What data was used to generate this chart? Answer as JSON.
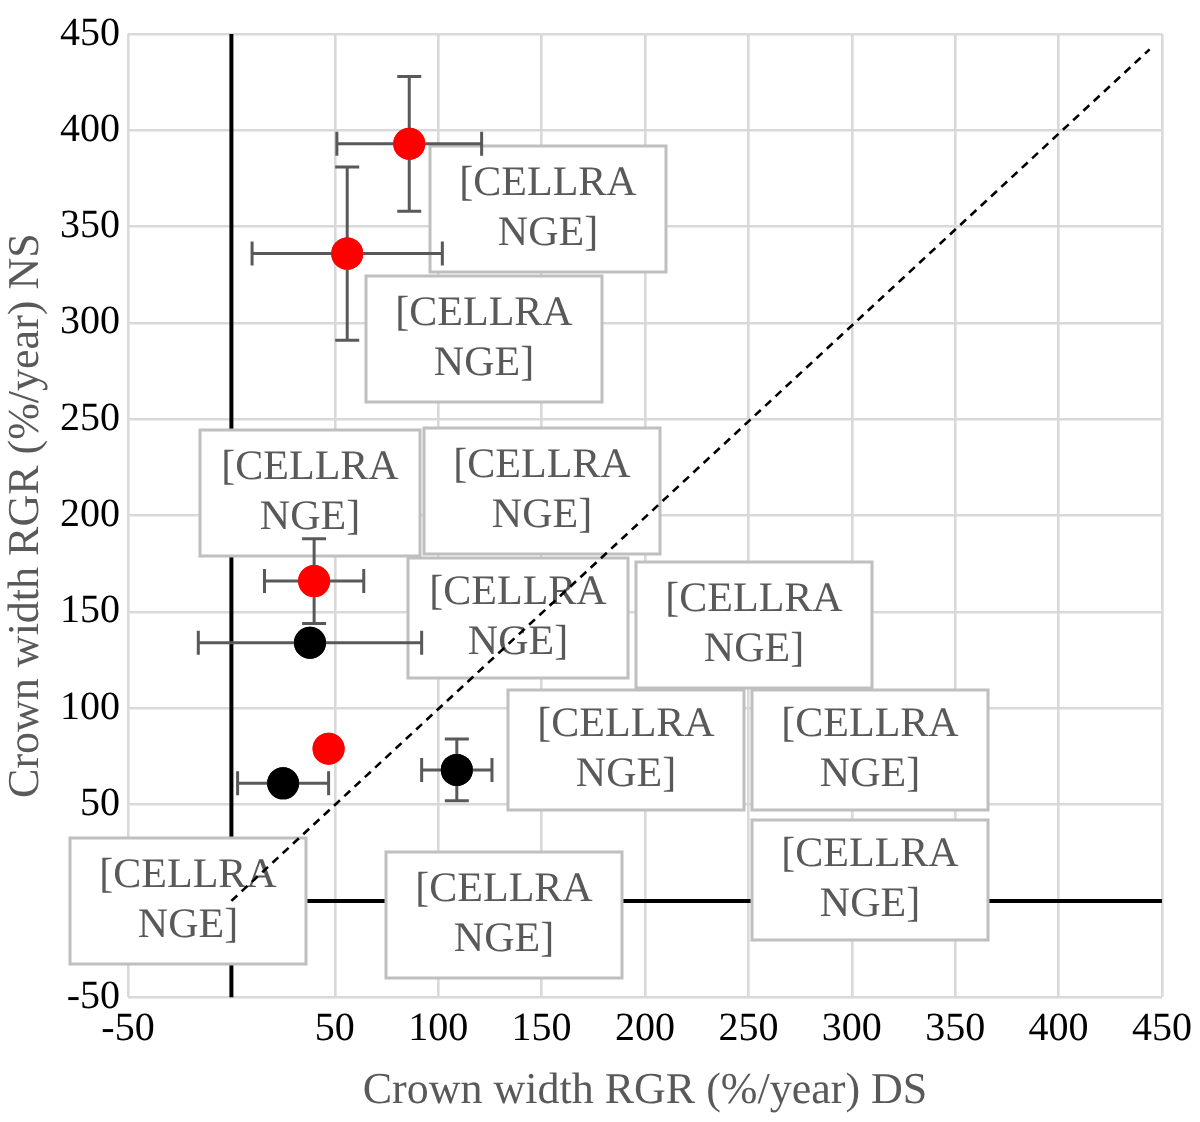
{
  "chart_data": {
    "type": "scatter",
    "xlabel": "Crown width RGR (%/year) DS",
    "ylabel": "Crown width RGR (%/year) NS",
    "xlim": [
      -50,
      450
    ],
    "xticks": [
      -50,
      {
        "value": 0,
        "label": null
      },
      50,
      100,
      150,
      200,
      250,
      300,
      350,
      400,
      450
    ],
    "ylim": [
      -50,
      450
    ],
    "yticks": [
      -50,
      {
        "value": 0,
        "label": null
      },
      50,
      100,
      150,
      200,
      250,
      300,
      350,
      400,
      450
    ],
    "grid": true,
    "marker": "circle",
    "series": [
      {
        "color": "#ff0000",
        "x": [
          86,
          56,
          40,
          47
        ],
        "values": [
          393,
          336,
          166,
          79
        ],
        "errors": [
          35,
          45,
          22,
          null
        ],
        "xerrors": [
          35,
          46,
          24,
          null
        ]
      },
      {
        "color": "#000000",
        "x": [
          38,
          25,
          109
        ],
        "values": [
          134,
          61,
          68
        ],
        "errors": [
          null,
          null,
          16
        ],
        "xerrors": [
          54,
          22,
          17
        ]
      },
      {
        "type": "line",
        "color": "#000000",
        "line_style": "dashed",
        "marker": "none",
        "x": [
          0,
          444
        ],
        "values": [
          0,
          442
        ]
      }
    ],
    "annotations": [
      "[CELLRANGE]",
      "[CELLRANGE]",
      "[CELLRANGE]",
      "[CELLRANGE]",
      "[CELLRANGE]",
      "[CELLRANGE]",
      "[CELLRANGE]",
      "[CELLRANGE]",
      "[CELLRANGE]",
      "[CELLRANGE]",
      "[CELLRANGE]"
    ]
  }
}
